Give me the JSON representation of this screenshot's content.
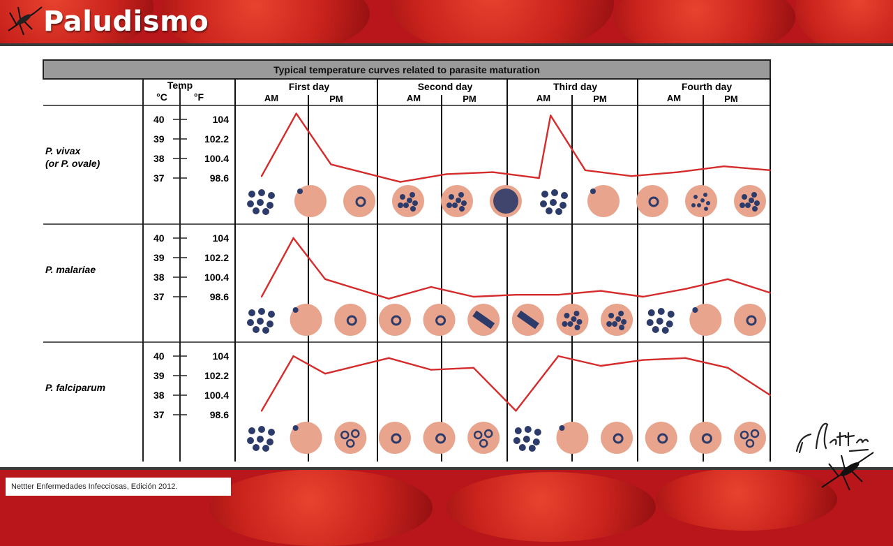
{
  "slide": {
    "title": "Paludismo",
    "source_caption": "Nettter Enfermedades Infecciosas, Edición 2012."
  },
  "colors": {
    "curve": "#d52b2b",
    "header_bg": "#9a9a9a",
    "rbc": "#e8a48c",
    "parasite": "#2d3b6a",
    "background_red": "#b8161a"
  },
  "icons": [
    "mosquito-icon",
    "netter-signature-icon",
    "red-blood-cell-icon",
    "parasite-icon"
  ],
  "chart_data": {
    "type": "line",
    "title": "Typical temperature curves related to parasite maturation",
    "temp_header": "Temp",
    "celsius_header": "°C",
    "fahrenheit_header": "°F",
    "days": [
      {
        "name": "First day",
        "am": "AM",
        "pm": "PM"
      },
      {
        "name": "Second day",
        "am": "AM",
        "pm": "PM"
      },
      {
        "name": "Third day",
        "am": "AM",
        "pm": "PM"
      },
      {
        "name": "Fourth day",
        "am": "AM",
        "pm": "PM"
      }
    ],
    "scale": [
      {
        "c": "40",
        "f": "104"
      },
      {
        "c": "39",
        "f": "102.2"
      },
      {
        "c": "38",
        "f": "100.4"
      },
      {
        "c": "37",
        "f": "98.6"
      }
    ],
    "x_range_hours": [
      0,
      96
    ],
    "y_range_celsius": [
      36.8,
      40.2
    ],
    "series": [
      {
        "name": "P. vivax",
        "subname": "(or P. ovale)",
        "x": [
          0,
          9,
          18,
          36,
          48,
          60,
          72,
          75,
          84,
          96,
          108,
          120,
          132
        ],
        "y": [
          37.1,
          40.3,
          37.7,
          36.8,
          37.2,
          37.3,
          37.0,
          40.2,
          37.4,
          37.1,
          37.3,
          37.6,
          37.4
        ],
        "stages": [
          "cluster",
          "cell",
          "ring",
          "dots",
          "dots",
          "dark",
          "cluster",
          "cell",
          "ring",
          "star",
          "dots"
        ]
      },
      {
        "name": "P. malariae",
        "subname": "",
        "x": [
          0,
          9,
          18,
          36,
          48,
          60,
          72,
          84,
          96,
          108,
          120,
          132,
          144
        ],
        "y": [
          37.0,
          40.0,
          37.9,
          36.9,
          37.5,
          37.0,
          37.1,
          37.1,
          37.3,
          37.0,
          37.4,
          37.9,
          37.2
        ],
        "stages": [
          "cluster",
          "cell",
          "ring",
          "ring",
          "ring",
          "band",
          "band",
          "dots",
          "dots",
          "cluster",
          "cell",
          "ring"
        ]
      },
      {
        "name": "P. falciparum",
        "subname": "",
        "x": [
          0,
          9,
          18,
          36,
          48,
          60,
          72,
          84,
          96,
          108,
          120,
          132,
          144
        ],
        "y": [
          37.2,
          40.0,
          39.1,
          39.9,
          39.3,
          39.4,
          37.2,
          40.0,
          39.5,
          39.8,
          39.9,
          39.4,
          38.0
        ],
        "stages": [
          "cluster",
          "cell",
          "multi",
          "ring",
          "ring",
          "multi",
          "cluster",
          "cell",
          "ring",
          "ring",
          "ring",
          "multi"
        ]
      }
    ],
    "grid": true,
    "legend": "none"
  }
}
